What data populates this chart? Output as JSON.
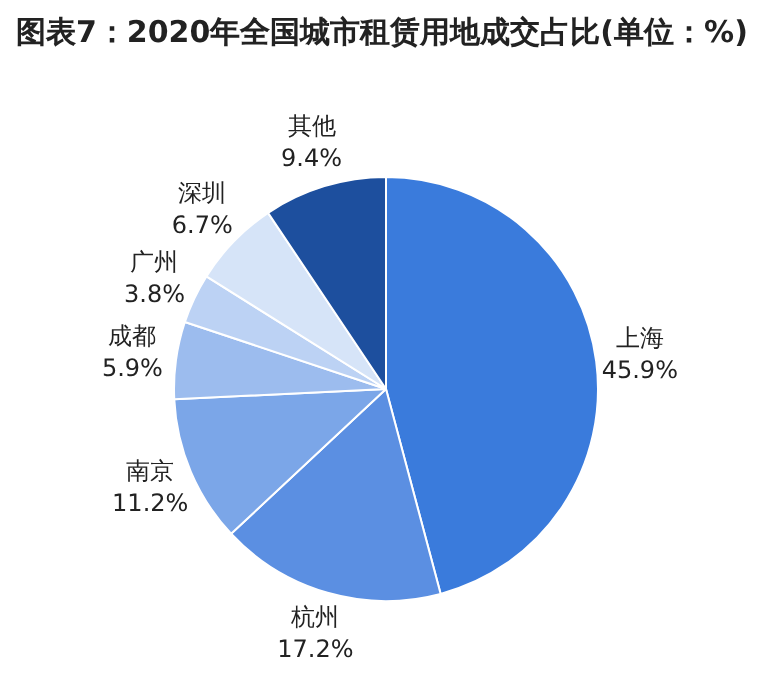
{
  "chart_data": {
    "type": "pie",
    "title": "图表7：2020年全国城市租赁用地成交占比(单位：%)",
    "categories": [
      "上海",
      "杭州",
      "南京",
      "成都",
      "广州",
      "深圳",
      "其他"
    ],
    "values": [
      45.9,
      17.2,
      11.2,
      5.9,
      3.8,
      6.7,
      9.4
    ],
    "value_labels": [
      "45.9%",
      "17.2%",
      "11.2%",
      "5.9%",
      "3.8%",
      "6.7%",
      "9.4%"
    ],
    "colors": [
      "#3a7bdc",
      "#5b8fe2",
      "#7ba6e8",
      "#9cbcee",
      "#bcd2f4",
      "#d6e4f8",
      "#1d4f9e"
    ],
    "legend": false
  }
}
